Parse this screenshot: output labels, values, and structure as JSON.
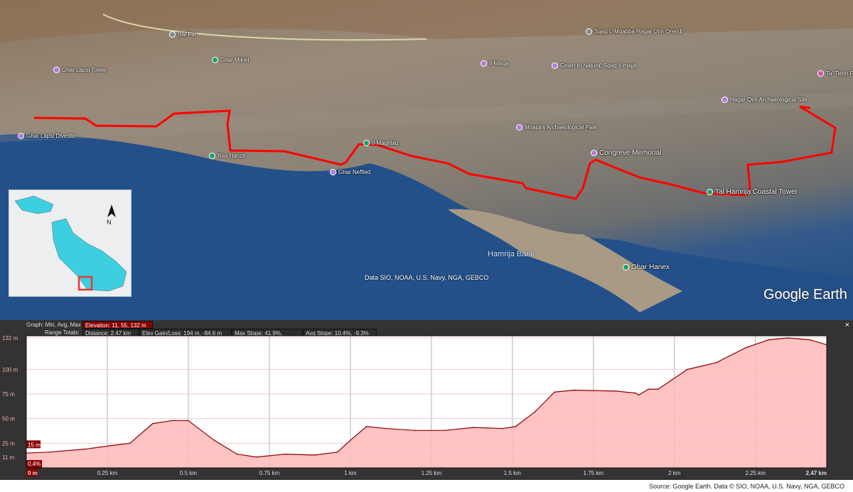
{
  "map": {
    "places": [
      {
        "name": "Ghar Lapsi Tower",
        "pin": "purple"
      },
      {
        "name": "Ghar Lapsi Divesite",
        "pin": "purple"
      },
      {
        "name": "Hal Far",
        "pin": "grey"
      },
      {
        "name": "Ghar Mikiel",
        "pin": "green"
      },
      {
        "name": "Ras Hanzir",
        "pin": "green"
      },
      {
        "name": "Ghar Neffied",
        "pin": "purple"
      },
      {
        "name": "Il-Maghlaq",
        "pin": "green"
      },
      {
        "name": "Il-Misqa",
        "pin": "purple"
      },
      {
        "name": "Gnien In Natura, Sqaq Il-majja",
        "pin": "purple"
      },
      {
        "name": "Sqaq L-Mqabba Hagar Qim Qrendi",
        "pin": "grey"
      },
      {
        "name": "Mnajdra Archaeological Park",
        "pin": "purple"
      },
      {
        "name": "Congreve Memorial",
        "pin": "purple"
      },
      {
        "name": "Tal Hamrija Coastal Tower",
        "pin": "green"
      },
      {
        "name": "Hagar Qim Archaeological Site",
        "pin": "purple"
      },
      {
        "name": "Ta' Tietin Farm",
        "pin": "pink"
      },
      {
        "name": "Ghar Hanex",
        "pin": "green"
      }
    ],
    "sea_label": "Hamrija Bank",
    "attribution": "Data SIO, NOAA, U.S. Navy, NGA, GEBCO",
    "logo": "Google Earth",
    "route_color": "#ff0000",
    "inset": {
      "compass": "N",
      "land_color": "#3ccfe0",
      "marker_color": "#e53935"
    }
  },
  "profile": {
    "graph_label": "Graph: Min, Avg, Max",
    "elevation": "Elevation: 11, 55, 132 m",
    "range_label": "Range Totals:",
    "distance": "Distance: 2.47 km",
    "gain_loss": "Elev Gain/Loss: 194 m, -84.6 m",
    "max_slope": "Max Slope: 41.9%, -33.6%",
    "avg_slope": "Avg Slope: 10.4%, -9.3%",
    "cursor_elev": "15 m",
    "cursor_slope": "0.4%",
    "close": "×"
  },
  "chart_data": {
    "type": "area",
    "xlim": [
      0,
      2.47
    ],
    "ylim": [
      0,
      132
    ],
    "xticks": [
      "0 m",
      "0.25 km",
      "0.5 km",
      "0.75 km",
      "1 km",
      "1.25 km",
      "1.5 km",
      "1.75 km",
      "2 km",
      "2.25 km",
      "2.47 km"
    ],
    "xtick_values": [
      0,
      0.25,
      0.5,
      0.75,
      1,
      1.25,
      1.5,
      1.75,
      2,
      2.25,
      2.47
    ],
    "yticks": [
      "11 m",
      "25 m",
      "50 m",
      "75 m",
      "100 m",
      "132 m"
    ],
    "ytick_values": [
      11,
      25,
      50,
      75,
      100,
      132
    ],
    "x": [
      0,
      0.07,
      0.18,
      0.27,
      0.32,
      0.39,
      0.45,
      0.5,
      0.58,
      0.65,
      0.71,
      0.8,
      0.89,
      0.96,
      1.0,
      1.05,
      1.11,
      1.2,
      1.29,
      1.38,
      1.47,
      1.51,
      1.57,
      1.63,
      1.69,
      1.82,
      1.88,
      1.89,
      1.92,
      1.95,
      2.04,
      2.13,
      2.22,
      2.29,
      2.35,
      2.42,
      2.47
    ],
    "y": [
      15,
      16,
      19,
      23,
      25,
      45,
      48,
      48,
      28,
      14,
      11,
      14,
      13,
      16,
      28,
      42,
      40,
      38,
      38,
      41,
      40,
      42,
      57,
      77,
      79,
      78,
      76,
      74,
      80,
      80,
      100,
      107,
      122,
      130,
      132,
      130,
      125
    ],
    "line_color": "#8b0000",
    "fill_color": "#ffb8b8",
    "grid": true
  },
  "source": "Source: Google Earth. Data © SIO, NOAA, U.S. Navy, NGA, GEBCO"
}
